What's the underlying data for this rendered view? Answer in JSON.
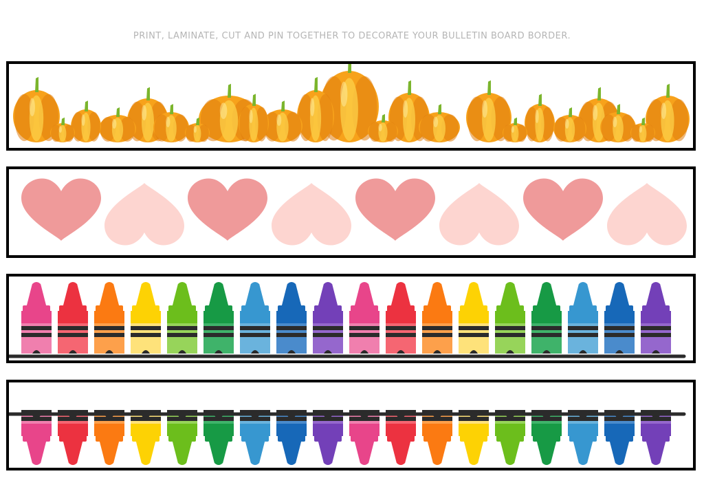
{
  "instruction": "PRINT, LAMINATE, CUT AND PIN TOGETHER TO DECORATE YOUR BULLETIN BOARD BORDER.",
  "strips": [
    {
      "name": "pumpkin-border-strip",
      "motif": "pumpkins",
      "colors": {
        "body": "#f7a21b",
        "shade": "#e07d0e",
        "light": "#fcd04a",
        "stem": "#7bb52d"
      }
    },
    {
      "name": "heart-border-strip",
      "motif": "hearts",
      "colors": [
        "#ef9a9a",
        "#fdd5d0"
      ]
    },
    {
      "name": "crayon-border-strip-up",
      "motif": "crayons pointing up"
    },
    {
      "name": "crayon-border-strip-down",
      "motif": "crayons upside down"
    }
  ],
  "crayon_colors": [
    {
      "name": "pink",
      "dark": "#e8458a",
      "light": "#f07fae"
    },
    {
      "name": "red",
      "dark": "#ec3240",
      "light": "#f56672"
    },
    {
      "name": "orange",
      "dark": "#fb7a12",
      "light": "#fda04b"
    },
    {
      "name": "yellow",
      "dark": "#fdd204",
      "light": "#fee27a"
    },
    {
      "name": "lime",
      "dark": "#6cbe1c",
      "light": "#97d45a"
    },
    {
      "name": "green",
      "dark": "#179a45",
      "light": "#3fb36a"
    },
    {
      "name": "sky",
      "dark": "#3797d0",
      "light": "#6ab3dd"
    },
    {
      "name": "blue",
      "dark": "#1768b8",
      "light": "#4a8bcc"
    },
    {
      "name": "purple",
      "dark": "#7340b8",
      "light": "#9567cd"
    }
  ]
}
